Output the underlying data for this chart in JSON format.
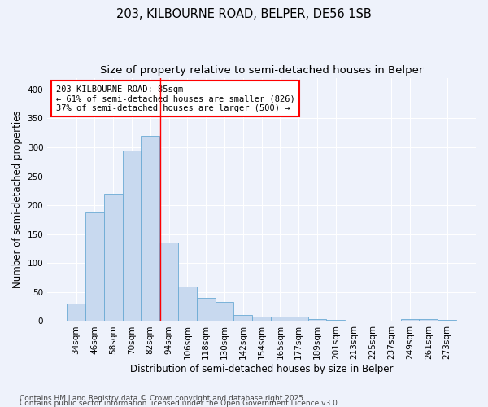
{
  "title1": "203, KILBOURNE ROAD, BELPER, DE56 1SB",
  "title2": "Size of property relative to semi-detached houses in Belper",
  "xlabel": "Distribution of semi-detached houses by size in Belper",
  "ylabel": "Number of semi-detached properties",
  "categories": [
    "34sqm",
    "46sqm",
    "58sqm",
    "70sqm",
    "82sqm",
    "94sqm",
    "106sqm",
    "118sqm",
    "130sqm",
    "142sqm",
    "154sqm",
    "165sqm",
    "177sqm",
    "189sqm",
    "201sqm",
    "213sqm",
    "225sqm",
    "237sqm",
    "249sqm",
    "261sqm",
    "273sqm"
  ],
  "values": [
    30,
    188,
    220,
    295,
    320,
    135,
    60,
    40,
    33,
    10,
    7,
    8,
    8,
    4,
    2,
    1,
    1,
    1,
    4,
    3,
    2
  ],
  "bar_color": "#c8d9ef",
  "bar_edge_color": "#6aaad4",
  "bar_width": 1.0,
  "red_line_x": 4.55,
  "annotation_title": "203 KILBOURNE ROAD: 85sqm",
  "annotation_line1": "← 61% of semi-detached houses are smaller (826)",
  "annotation_line2": "37% of semi-detached houses are larger (500) →",
  "ylim": [
    0,
    420
  ],
  "yticks": [
    0,
    50,
    100,
    150,
    200,
    250,
    300,
    350,
    400
  ],
  "footnote1": "Contains HM Land Registry data © Crown copyright and database right 2025.",
  "footnote2": "Contains public sector information licensed under the Open Government Licence v3.0.",
  "background_color": "#eef2fb",
  "grid_color": "#ffffff",
  "title_fontsize": 10.5,
  "subtitle_fontsize": 9.5,
  "axis_label_fontsize": 8.5,
  "tick_fontsize": 7.5,
  "annotation_fontsize": 7.5,
  "footnote_fontsize": 6.5
}
